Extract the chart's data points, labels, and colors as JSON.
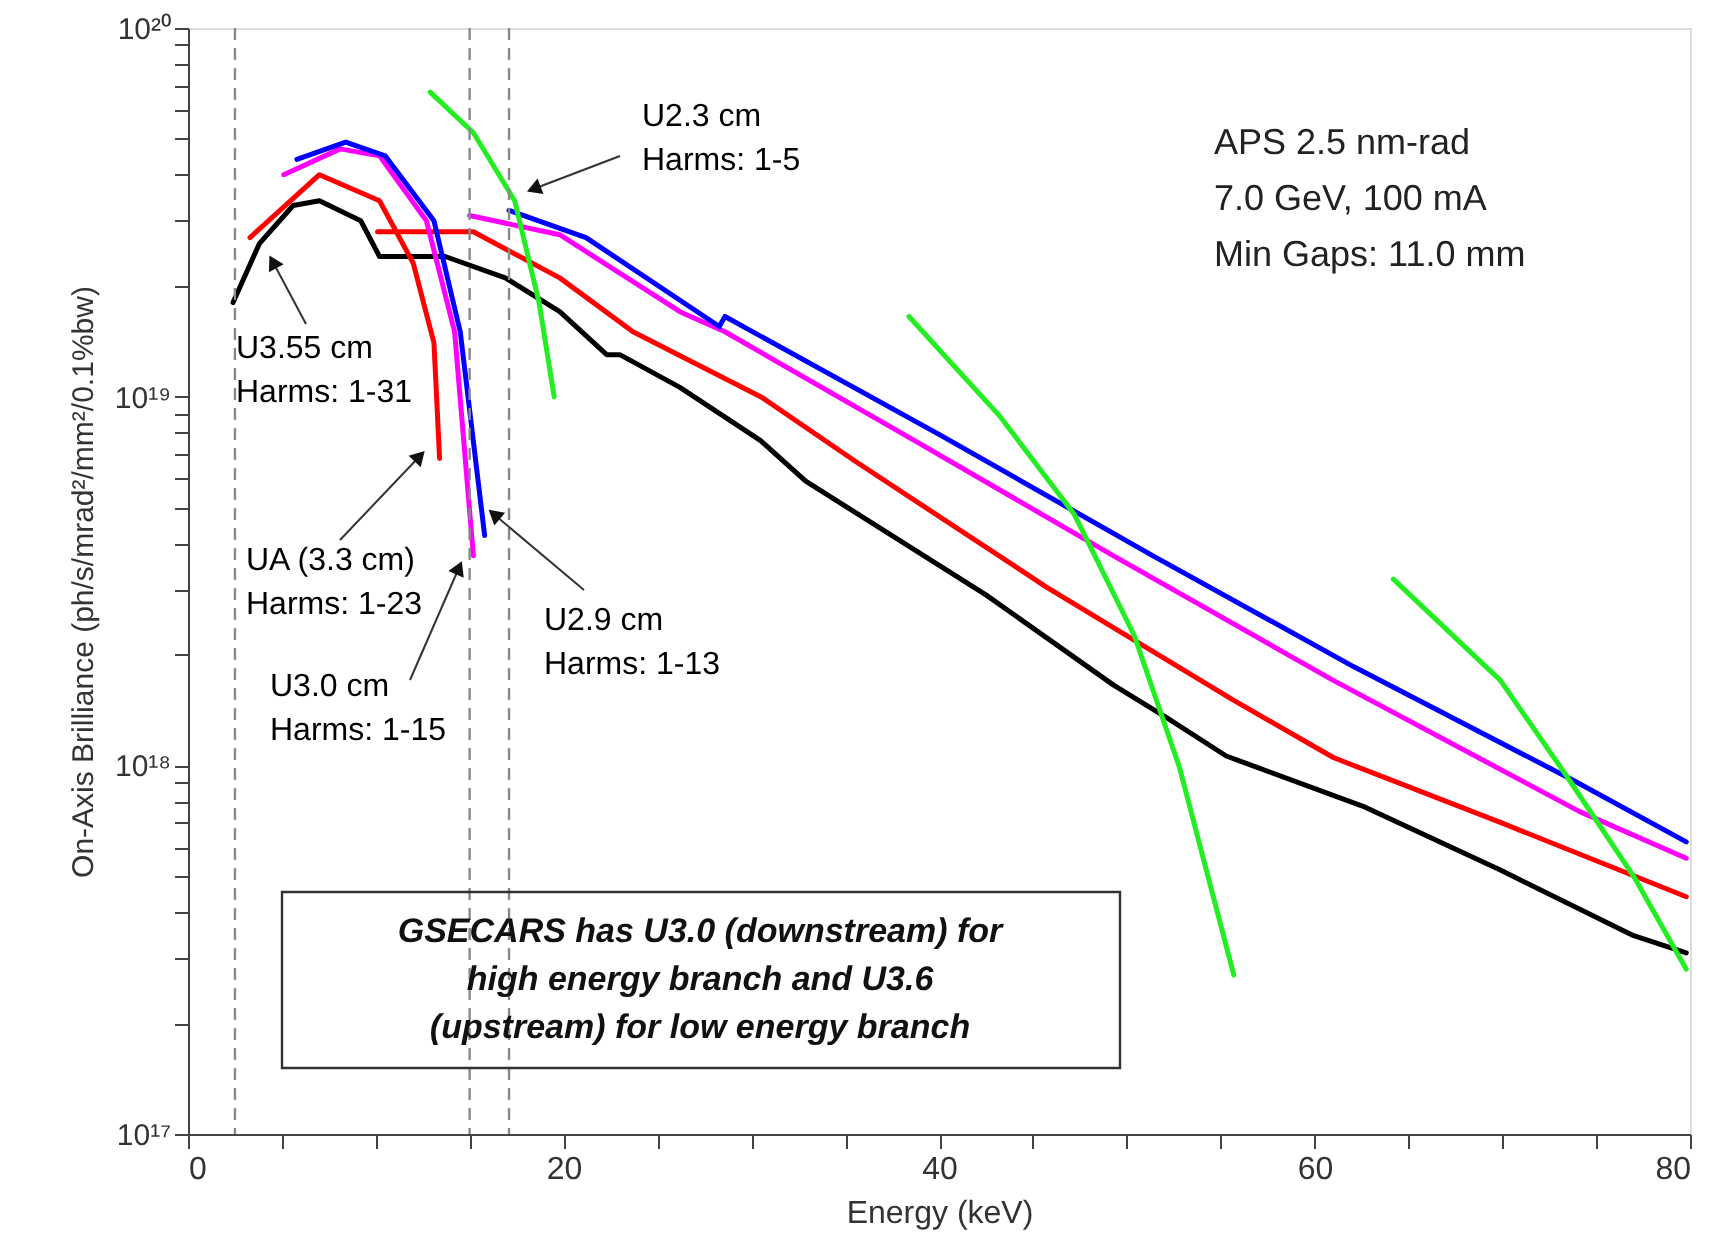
{
  "chart_data": {
    "type": "line",
    "xlabel": "Energy (keV)",
    "ylabel": "On-Axis Brilliance (ph/s/mrad²/mm²/0.1%bw)",
    "xlim": [
      0,
      80
    ],
    "ylim": [
      1e+17,
      1e+20
    ],
    "log": "y",
    "grid": false,
    "xticks": [
      0,
      {
        "value": 5,
        "label": null
      },
      {
        "value": 10,
        "label": null
      },
      {
        "value": 15,
        "label": null
      },
      20,
      {
        "value": 25,
        "label": null
      },
      {
        "value": 30,
        "label": null
      },
      {
        "value": 35,
        "label": null
      },
      40,
      {
        "value": 45,
        "label": null
      },
      {
        "value": 50,
        "label": null
      },
      {
        "value": 55,
        "label": null
      },
      60,
      {
        "value": 65,
        "label": null
      },
      {
        "value": 70,
        "label": null
      },
      {
        "value": 75,
        "label": null
      },
      80
    ],
    "yticks": [
      {
        "value": 1e+17,
        "label": "10¹⁷"
      },
      {
        "value": 2e+17,
        "label": null
      },
      {
        "value": 3e+17,
        "label": null
      },
      {
        "value": 4e+17,
        "label": null
      },
      {
        "value": 5e+17,
        "label": null
      },
      {
        "value": 6e+17,
        "label": null
      },
      {
        "value": 7e+17,
        "label": null
      },
      {
        "value": 8e+17,
        "label": null
      },
      {
        "value": 9e+17,
        "label": null
      },
      {
        "value": 1e+18,
        "label": "10¹⁸"
      },
      {
        "value": 2e+18,
        "label": null
      },
      {
        "value": 3e+18,
        "label": null
      },
      {
        "value": 4e+18,
        "label": null
      },
      {
        "value": 5e+18,
        "label": null
      },
      {
        "value": 6e+18,
        "label": null
      },
      {
        "value": 7e+18,
        "label": null
      },
      {
        "value": 8e+18,
        "label": null
      },
      {
        "value": 9e+18,
        "label": null
      },
      {
        "value": 1e+19,
        "label": "10¹⁹"
      },
      {
        "value": 2e+19,
        "label": null
      },
      {
        "value": 3e+19,
        "label": null
      },
      {
        "value": 4e+19,
        "label": null
      },
      {
        "value": 5e+19,
        "label": null
      },
      {
        "value": 6e+19,
        "label": null
      },
      {
        "value": 7e+19,
        "label": null
      },
      {
        "value": 8e+19,
        "label": null
      },
      {
        "value": 9e+19,
        "label": null
      },
      {
        "value": 1e+20,
        "label": "10²⁰"
      }
    ],
    "series": [
      {
        "name": "U3.55 cm\nHarms: 1-31",
        "color": "#000000",
        "x": [
          2.4,
          3.8,
          5.6,
          7.0,
          9.2,
          10.2,
          13.7,
          16.9,
          19.8,
          22.3,
          23.0,
          26.2,
          30.5,
          32.9,
          42.5,
          49.3,
          52.1,
          55.3,
          62.7,
          69.9,
          77.0,
          79.8
        ],
        "values": [
          1.8e+19,
          2.6e+19,
          3.3e+19,
          3.4e+19,
          3e+19,
          2.4e+19,
          2.4e+19,
          2.1e+19,
          1.7e+19,
          1.3e+19,
          1.3e+19,
          1.06e+19,
          7.6e+18,
          5.9e+18,
          2.9e+18,
          1.65e+18,
          1.35e+18,
          1.06e+18,
          7.7e+17,
          5.2e+17,
          3.45e+17,
          3.1e+17
        ]
      },
      {
        "name": "UA (3.3 cm)\nHarms: 1-23",
        "color": "#ff0000",
        "x": [
          3.3,
          7.0,
          10.2,
          12.0,
          13.1,
          13.4,
          null,
          10.1,
          15.2,
          19.8,
          23.7,
          30.5,
          35.5,
          45.7,
          55.7,
          61.0,
          69.9,
          79.8
        ],
        "values": [
          2.7e+19,
          4e+19,
          3.4e+19,
          2.3e+19,
          1.4e+19,
          6.8e+18,
          null,
          2.8e+19,
          2.8e+19,
          2.1e+19,
          1.5e+19,
          1e+19,
          6.7e+18,
          3.05e+18,
          1.5e+18,
          1.05e+18,
          7e+17,
          4.4e+17
        ]
      },
      {
        "name": "U3.0 cm\nHarms: 1-15",
        "color": "#ff00ff",
        "x": [
          5.1,
          8.1,
          10.2,
          12.7,
          14.2,
          15.2,
          null,
          15.0,
          19.8,
          26.2,
          28.6,
          38.7,
          49.3,
          61.0,
          74.1,
          79.8
        ],
        "values": [
          4e+19,
          4.7e+19,
          4.5e+19,
          3e+19,
          1.5e+19,
          3.7e+18,
          null,
          3.1e+19,
          2.75e+19,
          1.7e+19,
          1.5e+19,
          7.6e+18,
          3.7e+18,
          1.7e+18,
          7.5e+17,
          5.6e+17
        ]
      },
      {
        "name": "U2.9 cm\nHarms: 1-13",
        "color": "#0000ff",
        "x": [
          5.8,
          8.4,
          10.5,
          13.1,
          14.5,
          15.8,
          null,
          17.1,
          21.2,
          28.3,
          28.6,
          40.0,
          51.4,
          62.1,
          73.8,
          79.8
        ],
        "values": [
          4.4e+19,
          4.9e+19,
          4.5e+19,
          3e+19,
          1.5e+19,
          4.2e+18,
          null,
          3.2e+19,
          2.7e+19,
          1.55e+19,
          1.65e+19,
          7.9e+18,
          3.7e+18,
          1.85e+18,
          9.1e+17,
          6.2e+17
        ]
      },
      {
        "name": "U2.3 cm\nHarms: 1-5",
        "color": "#22ee22",
        "x": [
          12.9,
          15.2,
          17.4,
          18.7,
          19.5,
          null,
          38.4,
          43.2,
          47.2,
          50.4,
          52.8,
          55.7,
          null,
          64.2,
          69.9,
          73.4,
          77.0,
          79.8
        ],
        "values": [
          6.7e+19,
          5.2e+19,
          3.4e+19,
          1.8e+19,
          1e+19,
          null,
          1.65e+19,
          8.9e+18,
          4.8e+18,
          2.25e+18,
          9.9e+17,
          2.7e+17,
          null,
          3.2e+18,
          1.7e+18,
          9.4e+17,
          5e+17,
          2.8e+17
        ]
      }
    ],
    "ref_lines": [
      {
        "axis": "x",
        "value": 2.5,
        "color": "#888888",
        "line_style": "dashed"
      },
      {
        "axis": "x",
        "value": 15.0,
        "color": "#888888",
        "line_style": "dashed"
      },
      {
        "axis": "x",
        "value": 17.1,
        "color": "#888888",
        "line_style": "dashed"
      }
    ],
    "annotations": [
      "APS 2.5 nm-rad",
      "7.0 GeV, 100 mA",
      "Min Gaps: 11.0 mm",
      "GSECARS has U3.0 (downstream) for",
      "high energy branch and U3.6",
      "(upstream) for low energy branch"
    ]
  }
}
